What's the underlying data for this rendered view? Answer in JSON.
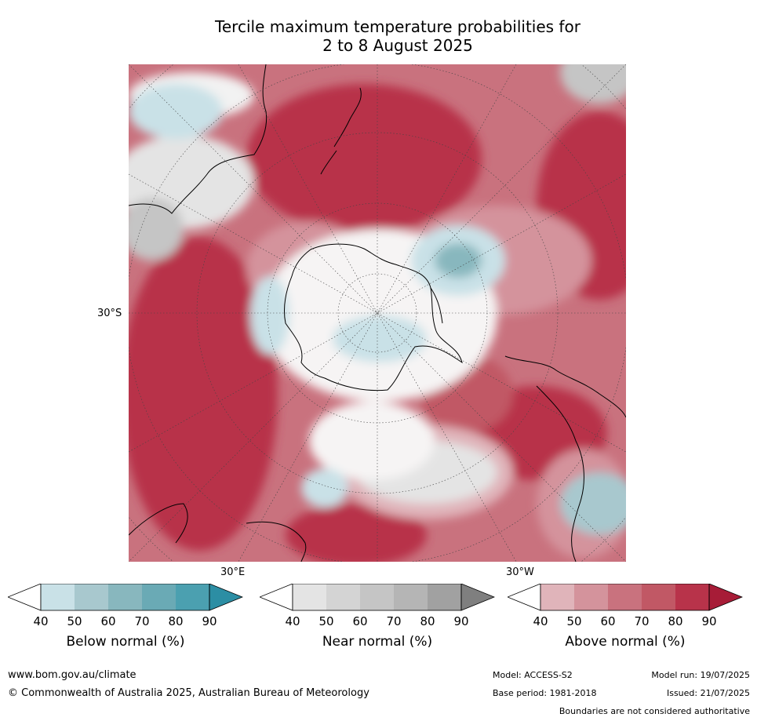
{
  "title": {
    "line1": "Tercile maximum temperature probabilities for",
    "line2": "2 to 8 August 2025"
  },
  "map_labels": {
    "lat_30s": "30°S",
    "lon_30e": "30°E",
    "lon_30w": "30°W"
  },
  "colorbars": [
    {
      "label": "Below normal (%)",
      "ticks": [
        "40",
        "50",
        "60",
        "70",
        "80",
        "90"
      ],
      "colors": [
        "#ffffff",
        "#c9e1e7",
        "#a8c8ce",
        "#88b7be",
        "#6aaab5",
        "#4ba0b0",
        "#2c8ea4"
      ]
    },
    {
      "label": "Near normal (%)",
      "ticks": [
        "40",
        "50",
        "60",
        "70",
        "80",
        "90"
      ],
      "colors": [
        "#ffffff",
        "#e4e4e4",
        "#d4d4d4",
        "#c5c5c5",
        "#b5b5b5",
        "#a1a1a1",
        "#7f7f7f"
      ]
    },
    {
      "label": "Above normal (%)",
      "ticks": [
        "40",
        "50",
        "60",
        "70",
        "80",
        "90"
      ],
      "colors": [
        "#ffffff",
        "#e0b4ba",
        "#d4939c",
        "#c9727e",
        "#c15865",
        "#b8334a",
        "#a71c37"
      ]
    }
  ],
  "footer": {
    "website": "www.bom.gov.au/climate",
    "copyright": "© Commonwealth of Australia 2025, Australian Bureau of Meteorology",
    "model": "Model: ACCESS-S2",
    "base_period": "Base period: 1981-2018",
    "model_run": "Model run: 19/07/2025",
    "issued": "Issued: 21/07/2025",
    "disclaimer": "Boundaries are not considered authoritative"
  },
  "colors": {
    "above_dark": "#b8334a",
    "above_mid": "#c9727e",
    "above_light": "#e0b4ba",
    "below_mid": "#88b7be",
    "below_light": "#c9e1e7",
    "near_light": "#e4e4e4",
    "near_mid": "#c5c5c5"
  }
}
